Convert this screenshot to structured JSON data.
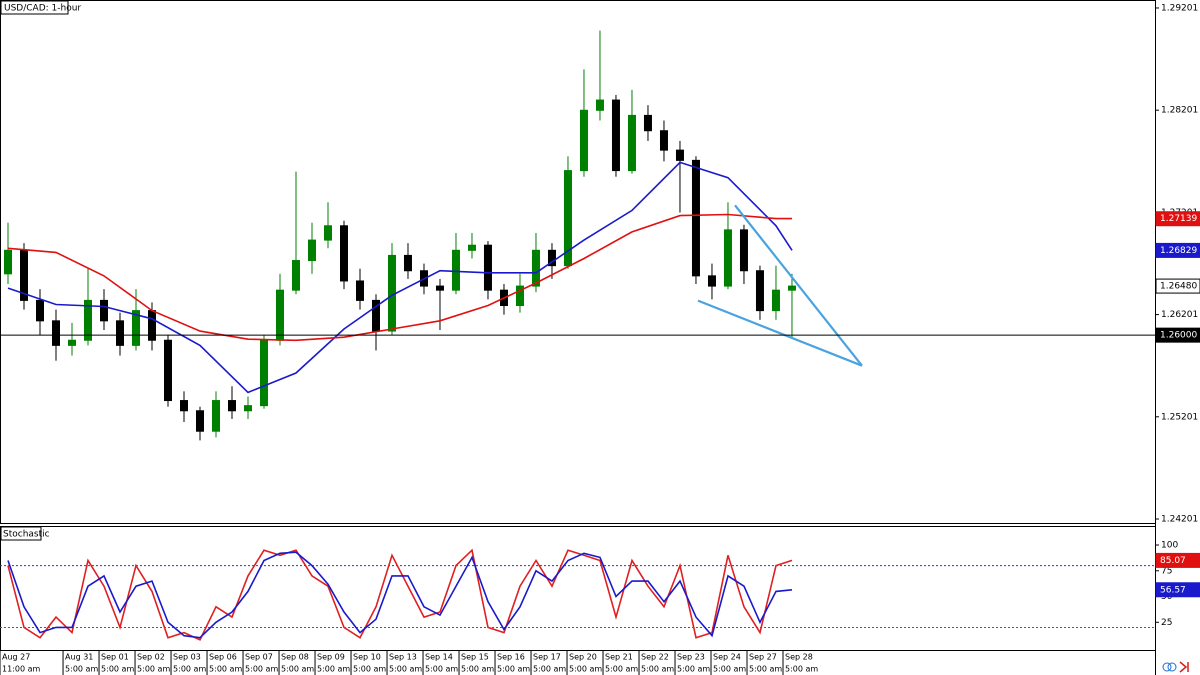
{
  "chart_data": [
    {
      "type": "candlestick",
      "title": "USD/CAD: 1-hour",
      "xlim": [
        -0.5,
        71.69
      ],
      "ylim": [
        1.24162,
        1.29279
      ],
      "yticks": [
        1.29201,
        1.28201,
        1.27201,
        1.26201,
        1.25201,
        1.24201
      ],
      "up_color": "#008000",
      "down_color": "#000000",
      "candles": {
        "open": [
          1.266,
          1.2683,
          1.2634,
          1.2614,
          1.259,
          1.2595,
          1.2634,
          1.2614,
          1.259,
          1.2624,
          1.2595,
          1.2536,
          1.2526,
          1.2506,
          1.2536,
          1.2526,
          1.2531,
          1.2595,
          1.2644,
          1.2673,
          1.2693,
          1.2707,
          1.2653,
          1.2634,
          1.2604,
          1.2678,
          1.2663,
          1.2648,
          1.2644,
          1.2683,
          1.2688,
          1.2644,
          1.2629,
          1.2648,
          1.2683,
          1.2668,
          1.2761,
          1.282,
          1.283,
          1.2761,
          1.2815,
          1.28,
          1.2781,
          1.2771,
          1.2658,
          1.2648,
          1.2703,
          1.2663,
          1.2624,
          1.2644
        ],
        "high": [
          1.271,
          1.269,
          1.2645,
          1.2625,
          1.2612,
          1.2665,
          1.2645,
          1.2622,
          1.2645,
          1.2632,
          1.26,
          1.2545,
          1.253,
          1.2545,
          1.255,
          1.254,
          1.26,
          1.266,
          1.276,
          1.271,
          1.273,
          1.2712,
          1.2665,
          1.264,
          1.269,
          1.269,
          1.267,
          1.2655,
          1.27,
          1.27,
          1.2692,
          1.265,
          1.266,
          1.27,
          1.269,
          1.2775,
          1.286,
          1.2898,
          1.2835,
          1.284,
          1.2825,
          1.281,
          1.279,
          1.2775,
          1.267,
          1.273,
          1.2708,
          1.2668,
          1.2668,
          1.266
        ],
        "low": [
          1.265,
          1.2625,
          1.26,
          1.2575,
          1.258,
          1.259,
          1.2605,
          1.258,
          1.2585,
          1.2585,
          1.253,
          1.2515,
          1.2497,
          1.25,
          1.2518,
          1.2518,
          1.2528,
          1.259,
          1.264,
          1.266,
          1.2685,
          1.2645,
          1.2625,
          1.2585,
          1.26,
          1.2655,
          1.264,
          1.2605,
          1.264,
          1.2675,
          1.2635,
          1.262,
          1.2622,
          1.2642,
          1.2655,
          1.2665,
          1.2755,
          1.281,
          1.2755,
          1.2758,
          1.279,
          1.277,
          1.272,
          1.265,
          1.2635,
          1.2645,
          1.265,
          1.2615,
          1.2615,
          1.2597
        ],
        "close": [
          1.2683,
          1.2634,
          1.2614,
          1.259,
          1.2595,
          1.2634,
          1.2614,
          1.259,
          1.2624,
          1.2595,
          1.2536,
          1.2526,
          1.2506,
          1.2536,
          1.2526,
          1.2531,
          1.2595,
          1.2644,
          1.2673,
          1.2693,
          1.2707,
          1.2653,
          1.2634,
          1.2604,
          1.2678,
          1.2663,
          1.2648,
          1.2644,
          1.2683,
          1.2688,
          1.2644,
          1.2629,
          1.2648,
          1.2683,
          1.2668,
          1.2761,
          1.282,
          1.283,
          1.2761,
          1.2815,
          1.28,
          1.2781,
          1.2771,
          1.2658,
          1.2648,
          1.2703,
          1.2663,
          1.2624,
          1.2644,
          1.2648
        ]
      },
      "series": [
        {
          "color": "#1a1acc",
          "x": [
            0,
            3,
            6,
            9,
            12,
            15,
            18,
            21,
            24,
            27,
            30,
            33,
            36,
            39,
            42,
            45,
            48,
            49
          ],
          "values": [
            1.2646,
            1.263,
            1.2628,
            1.2616,
            1.259,
            1.2544,
            1.2563,
            1.2606,
            1.2639,
            1.2663,
            1.2661,
            1.2661,
            1.2693,
            1.2722,
            1.2769,
            1.2754,
            1.2707,
            1.2683
          ]
        },
        {
          "color": "#e01010",
          "x": [
            0,
            3,
            6,
            9,
            12,
            15,
            18,
            21,
            24,
            27,
            30,
            33,
            36,
            39,
            42,
            45,
            48,
            49
          ],
          "values": [
            1.2685,
            1.2681,
            1.2658,
            1.2624,
            1.2604,
            1.2596,
            1.2595,
            1.2598,
            1.2606,
            1.2614,
            1.2629,
            1.2651,
            1.2675,
            1.2701,
            1.2717,
            1.2718,
            1.2714,
            1.2714
          ]
        }
      ],
      "trendlines": [
        {
          "color": "#4aa3df",
          "x": [
            45.44,
            53.375
          ],
          "values": [
            1.2727,
            1.25701
          ]
        },
        {
          "color": "#4aa3df",
          "x": [
            43.125,
            53.375
          ],
          "values": [
            1.26338,
            1.25701
          ]
        }
      ],
      "price_labels": [
        {
          "value": 1.27139,
          "color": "#e01010"
        },
        {
          "value": 1.26829,
          "color": "#1a1acc"
        },
        {
          "value": 1.2648,
          "label": "1.26480",
          "color": "#ffffff"
        },
        {
          "value": 1.26,
          "label": "1.26000",
          "color": "#000000",
          "line": true
        }
      ]
    },
    {
      "type": "stochastic",
      "title": "Stochastic",
      "ylim": [
        -1.9,
        117.5
      ],
      "yticks": [
        100,
        75,
        50,
        25
      ],
      "levels": [
        {
          "value": 80,
          "color": "#3333cc"
        },
        {
          "value": 20,
          "color": "#e02020"
        }
      ],
      "series": [
        {
          "color": "#e02020",
          "values": [
            80,
            20,
            10,
            30,
            15,
            85,
            60,
            20,
            80,
            55,
            10,
            15,
            8,
            40,
            30,
            70,
            95,
            90,
            95,
            70,
            60,
            20,
            10,
            40,
            90,
            60,
            30,
            35,
            80,
            95,
            20,
            15,
            60,
            85,
            60,
            95,
            90,
            85,
            30,
            85,
            60,
            40,
            80,
            10,
            15,
            90,
            40,
            15,
            80,
            85.07
          ]
        },
        {
          "color": "#1a1acc",
          "values": [
            85,
            40,
            15,
            20,
            20,
            60,
            70,
            35,
            60,
            65,
            25,
            12,
            10,
            25,
            35,
            55,
            85,
            92,
            93,
            80,
            62,
            35,
            15,
            28,
            70,
            70,
            40,
            32,
            60,
            88,
            45,
            18,
            40,
            75,
            65,
            85,
            92,
            88,
            50,
            65,
            65,
            45,
            65,
            30,
            12,
            70,
            60,
            25,
            55,
            56.57
          ]
        }
      ],
      "price_labels": [
        {
          "value": 85.07,
          "color": "#e01010"
        },
        {
          "value": 56.57,
          "color": "#1a1acc"
        }
      ],
      "first_tick": {
        "value": -0.5,
        "label": "Aug 27",
        "time": "11:00 am"
      },
      "xticks": [
        {
          "value": 3.44,
          "label": "Aug 31",
          "time": "5:00 am"
        },
        {
          "value": 5.69,
          "label": "Sep 01",
          "time": "5:00 am"
        },
        {
          "value": 7.94,
          "label": "Sep 02",
          "time": "5:00 am"
        },
        {
          "value": 10.19,
          "label": "Sep 03",
          "time": "5:00 am"
        },
        {
          "value": 12.44,
          "label": "Sep 06",
          "time": "5:00 am"
        },
        {
          "value": 14.69,
          "label": "Sep 07",
          "time": "5:00 am"
        },
        {
          "value": 16.94,
          "label": "Sep 08",
          "time": "5:00 am"
        },
        {
          "value": 19.19,
          "label": "Sep 09",
          "time": "5:00 am"
        },
        {
          "value": 21.44,
          "label": "Sep 10",
          "time": "5:00 am"
        },
        {
          "value": 23.69,
          "label": "Sep 13",
          "time": "5:00 am"
        },
        {
          "value": 25.94,
          "label": "Sep 14",
          "time": "5:00 am"
        },
        {
          "value": 28.19,
          "label": "Sep 15",
          "time": "5:00 am"
        },
        {
          "value": 30.44,
          "label": "Sep 16",
          "time": "5:00 am"
        },
        {
          "value": 32.69,
          "label": "Sep 17",
          "time": "5:00 am"
        },
        {
          "value": 34.94,
          "label": "Sep 20",
          "time": "5:00 am"
        },
        {
          "value": 37.19,
          "label": "Sep 21",
          "time": "5:00 am"
        },
        {
          "value": 39.44,
          "label": "Sep 22",
          "time": "5:00 am"
        },
        {
          "value": 41.69,
          "label": "Sep 23",
          "time": "5:00 am"
        },
        {
          "value": 43.94,
          "label": "Sep 24",
          "time": "5:00 am"
        },
        {
          "value": 46.19,
          "label": "Sep 27",
          "time": "5:00 am"
        },
        {
          "value": 48.44,
          "label": "Sep 28",
          "time": "5:00 am"
        }
      ]
    }
  ]
}
